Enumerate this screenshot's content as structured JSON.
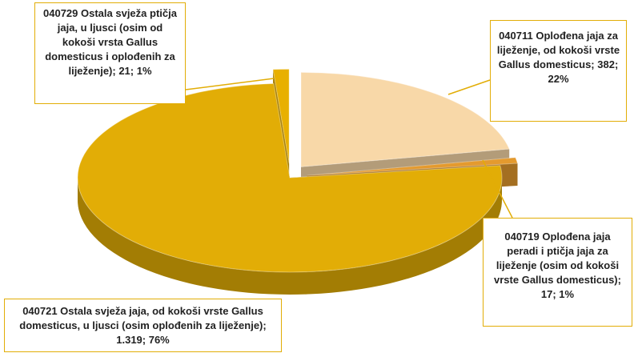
{
  "chart_data": {
    "type": "pie3d",
    "labels": [
      "040711 Oplođena jaja za liježenje, od kokoši vrste Gallus domesticus; 382; 22%",
      "040719 Oplođena jaja peradi i ptičja jaja za liježenje (osim od kokoši vrste Gallus domesticus); 17; 1%",
      "040721 Ostala svježa jaja, od kokoši vrste Gallus domesticus, u ljusci (osim oplođenih za liježenje); 1.319; 76%",
      "040729 Ostala svježa ptičja jaja, u ljusci (osim od kokoši vrsta Gallus domesticus i oplođenih za liježenje); 21; 1%"
    ],
    "values": [
      382,
      17,
      1319,
      21
    ],
    "colors": [
      "#f8d8a8",
      "#e49a2e",
      "#e2ad06",
      "#e8b000"
    ]
  }
}
